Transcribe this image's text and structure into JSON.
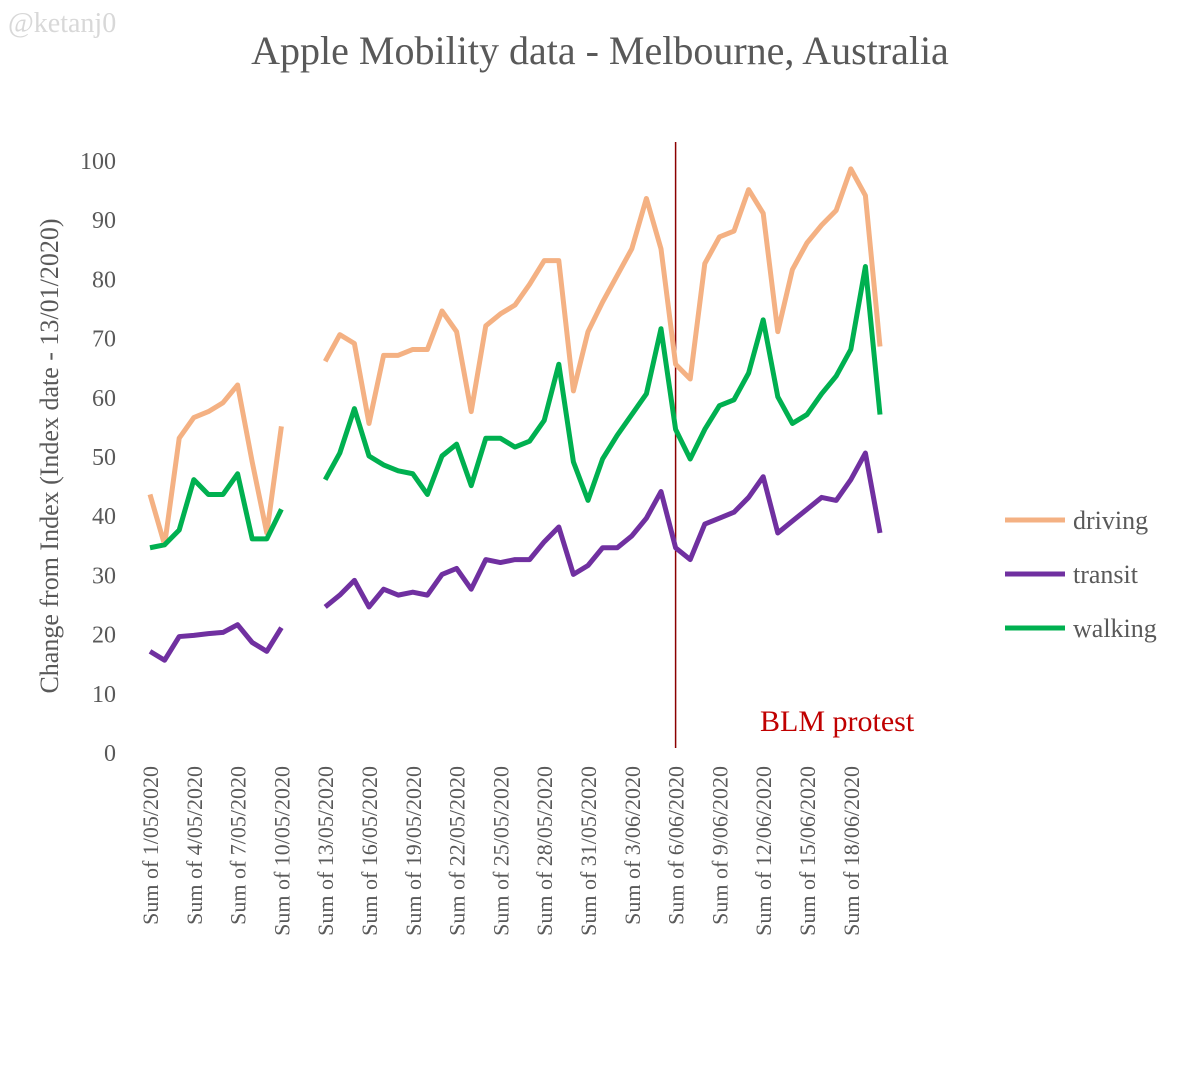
{
  "watermark": "@ketanj0",
  "chart_data": {
    "type": "line",
    "title": "Apple Mobility data - Melbourne, Australia",
    "y_label": "Change from Index (Index date - 13/01/2020)",
    "categories": [
      "Sum of 1/05/2020",
      null,
      null,
      "Sum of 4/05/2020",
      null,
      null,
      "Sum of 7/05/2020",
      null,
      null,
      "Sum of 10/05/2020",
      null,
      null,
      "Sum of 13/05/2020",
      null,
      null,
      "Sum of 16/05/2020",
      null,
      null,
      "Sum of 19/05/2020",
      null,
      null,
      "Sum of 22/05/2020",
      null,
      null,
      "Sum of 25/05/2020",
      null,
      null,
      "Sum of 28/05/2020",
      null,
      null,
      "Sum of 31/05/2020",
      null,
      null,
      "Sum of 3/06/2020",
      null,
      null,
      "Sum of 6/06/2020",
      null,
      null,
      "Sum of 9/06/2020",
      null,
      null,
      "Sum of 12/06/2020",
      null,
      null,
      "Sum of 15/06/2020",
      null,
      null,
      "Sum of 18/06/2020",
      null,
      null
    ],
    "series": [
      {
        "name": "driving",
        "color": "#f4b183",
        "values": [
          43.5,
          35,
          53,
          56.5,
          57.5,
          59,
          62,
          49,
          37,
          55,
          null,
          null,
          66,
          70.5,
          69,
          55.5,
          67,
          67,
          68,
          68,
          74.5,
          71,
          57.5,
          72,
          74,
          75.5,
          79,
          83,
          83,
          61,
          71,
          76,
          80.5,
          85,
          93.5,
          85,
          65.5,
          63,
          82.5,
          87,
          88,
          95,
          91,
          71,
          81.5,
          86,
          89,
          91.5,
          98.5,
          94,
          68.5
        ]
      },
      {
        "name": "transit",
        "color": "#7030a0",
        "values": [
          17,
          15.5,
          19.5,
          19.7,
          20,
          20.2,
          21.5,
          18.5,
          17,
          21,
          null,
          null,
          24.5,
          26.5,
          29,
          24.5,
          27.5,
          26.5,
          27,
          26.5,
          30,
          31,
          27.5,
          32.5,
          32,
          32.5,
          32.5,
          35.5,
          38,
          30,
          31.5,
          34.5,
          34.5,
          36.5,
          39.5,
          44,
          34.5,
          32.5,
          38.5,
          39.5,
          40.5,
          43,
          46.5,
          37,
          39,
          41,
          43,
          42.5,
          46,
          50.5,
          37
        ]
      },
      {
        "name": "walking",
        "color": "#00b050",
        "values": [
          34.5,
          35,
          37.5,
          46,
          43.5,
          43.5,
          47,
          36,
          36,
          41,
          null,
          null,
          46,
          50.5,
          58,
          50,
          48.5,
          47.5,
          47,
          43.5,
          50,
          52,
          45,
          53,
          53,
          51.5,
          52.5,
          56,
          65.5,
          49,
          42.5,
          49.5,
          53.5,
          57,
          60.5,
          71.5,
          54.5,
          49.5,
          54.5,
          58.5,
          59.5,
          64,
          73,
          60,
          55.5,
          57,
          60.5,
          63.5,
          68,
          82,
          57
        ]
      }
    ],
    "ylim": [
      0,
      100
    ],
    "yticks": [
      0,
      10,
      20,
      30,
      40,
      50,
      60,
      70,
      80,
      90,
      100
    ],
    "grid": false,
    "legend": "right",
    "annotation": {
      "text": "BLM protest",
      "x": "Sum of 6/06/2020",
      "color": "#c00000"
    }
  }
}
